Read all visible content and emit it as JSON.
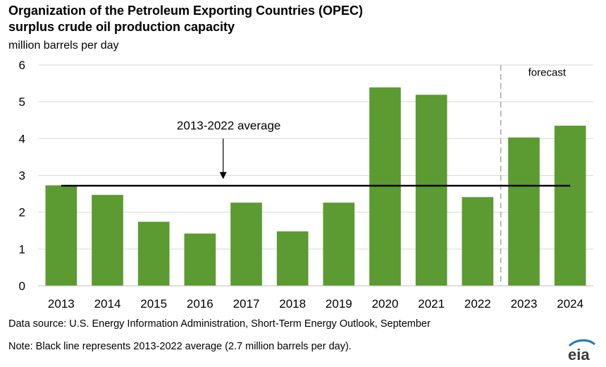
{
  "chart_data": {
    "type": "bar",
    "title_line1": "Organization of the Petroleum Exporting Countries (OPEC)",
    "title_line2": "surplus crude oil production capacity",
    "units": "million  barrels per day",
    "categories": [
      "2013",
      "2014",
      "2015",
      "2016",
      "2017",
      "2018",
      "2019",
      "2020",
      "2021",
      "2022",
      "2023",
      "2024"
    ],
    "values": [
      2.73,
      2.47,
      1.74,
      1.42,
      2.26,
      1.48,
      2.26,
      5.39,
      5.19,
      2.41,
      4.03,
      4.35
    ],
    "ylim": [
      0,
      6
    ],
    "yticks": [
      "0",
      "1",
      "2",
      "3",
      "4",
      "5",
      "6"
    ],
    "bar_color": "#5c9a32",
    "grid": true,
    "average": {
      "value": 2.72,
      "label": "2013-2022 average"
    },
    "forecast": {
      "label": "forecast",
      "start_category": "2023"
    }
  },
  "footer": {
    "source": "Data source: U.S. Energy Information Administration, Short-Term Energy Outlook, September",
    "note": "Note: Black line represents 2013-2022 average (2.7 million barrels per day)."
  },
  "logo": {
    "text": "eia",
    "accent_color": "#1f7bc1"
  }
}
